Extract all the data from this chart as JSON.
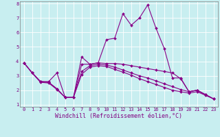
{
  "xlabel": "Windchill (Refroidissement éolien,°C)",
  "x": [
    0,
    1,
    2,
    3,
    4,
    5,
    6,
    7,
    8,
    9,
    10,
    11,
    12,
    13,
    14,
    15,
    16,
    17,
    18,
    19,
    20,
    21,
    22,
    23
  ],
  "series": [
    [
      3.9,
      3.2,
      2.6,
      2.6,
      3.2,
      1.5,
      1.5,
      4.3,
      3.8,
      3.9,
      5.5,
      5.6,
      7.3,
      6.5,
      7.0,
      7.9,
      6.3,
      4.9,
      2.85,
      2.85,
      1.9,
      2.0,
      1.7,
      1.4
    ],
    [
      3.9,
      3.2,
      2.6,
      2.55,
      2.1,
      1.5,
      1.5,
      3.8,
      3.8,
      3.9,
      3.85,
      3.85,
      3.8,
      3.7,
      3.6,
      3.5,
      3.4,
      3.3,
      3.2,
      2.8,
      1.9,
      2.0,
      1.7,
      1.4
    ],
    [
      3.9,
      3.2,
      2.6,
      2.55,
      2.1,
      1.5,
      1.5,
      3.3,
      3.7,
      3.8,
      3.75,
      3.6,
      3.4,
      3.2,
      3.0,
      2.85,
      2.65,
      2.45,
      2.25,
      2.05,
      1.9,
      2.0,
      1.7,
      1.4
    ],
    [
      3.9,
      3.2,
      2.55,
      2.5,
      2.05,
      1.5,
      1.5,
      3.1,
      3.6,
      3.7,
      3.65,
      3.45,
      3.25,
      3.05,
      2.8,
      2.6,
      2.4,
      2.2,
      2.0,
      1.9,
      1.8,
      1.9,
      1.65,
      1.4
    ]
  ],
  "line_color": "#880088",
  "marker": "D",
  "marker_size": 2.0,
  "bg_color": "#c8eef0",
  "grid_color": "#b0d8dc",
  "ylim_min": 1.0,
  "ylim_max": 8.0,
  "xlim_min": 0,
  "xlim_max": 23,
  "yticks": [
    1,
    2,
    3,
    4,
    5,
    6,
    7,
    8
  ],
  "xticks": [
    0,
    1,
    2,
    3,
    4,
    5,
    6,
    7,
    8,
    9,
    10,
    11,
    12,
    13,
    14,
    15,
    16,
    17,
    18,
    19,
    20,
    21,
    22,
    23
  ],
  "tick_fontsize": 5.0,
  "xlabel_fontsize": 6.0,
  "tick_color": "#800080",
  "label_color": "#800080",
  "spine_color": "#808080",
  "line_width": 0.8
}
